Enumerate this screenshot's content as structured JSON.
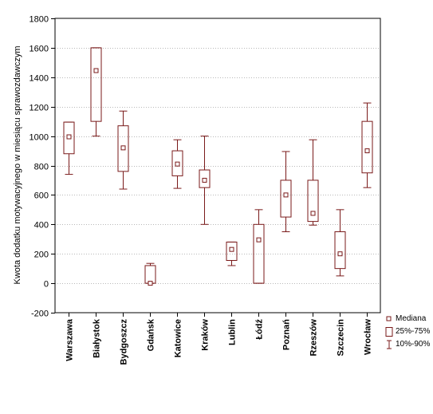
{
  "chart_data": {
    "type": "box",
    "ylabel": "Kwota dodatku motywacyjnego w miesiącu sprawozdawczym",
    "xlabel": "",
    "ylim": [
      -200,
      1800
    ],
    "yticks": [
      -200,
      0,
      200,
      400,
      600,
      800,
      1000,
      1200,
      1400,
      1600,
      1800
    ],
    "grid": "horizontal dotted",
    "legend_position": "right",
    "categories": [
      "Warszawa",
      "Białystok",
      "Bydgoszcz",
      "Gdańsk",
      "Katowice",
      "Kraków",
      "Lublin",
      "Łódź",
      "Poznań",
      "Rzeszów",
      "Szczecin",
      "Wrocław"
    ],
    "median": [
      995,
      1445,
      920,
      0,
      810,
      700,
      230,
      295,
      600,
      475,
      200,
      900
    ],
    "q25": [
      880,
      1100,
      760,
      0,
      730,
      650,
      155,
      0,
      450,
      420,
      100,
      750
    ],
    "q75": [
      1095,
      1600,
      1070,
      120,
      900,
      770,
      280,
      400,
      700,
      700,
      350,
      1100
    ],
    "p10": [
      740,
      1000,
      640,
      0,
      645,
      400,
      120,
      0,
      350,
      395,
      50,
      650
    ],
    "p90": [
      1095,
      1600,
      1170,
      135,
      975,
      1000,
      280,
      500,
      895,
      975,
      500,
      1225
    ],
    "legend": [
      "Mediana",
      "25%-75%",
      "10%-90%"
    ],
    "colors": {
      "box": "#7a1a1a",
      "grid": "#b8b8b8",
      "axis": "#000000"
    }
  }
}
